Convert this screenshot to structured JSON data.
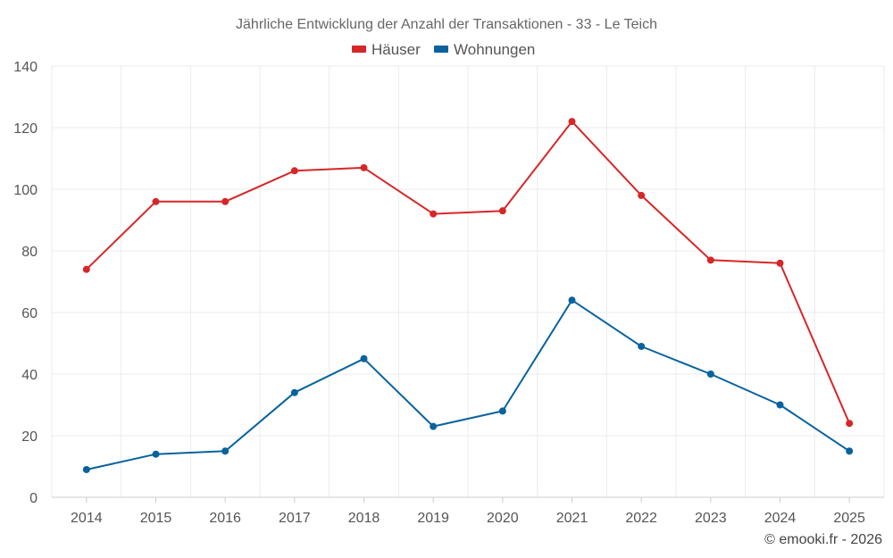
{
  "chart_data": {
    "type": "line",
    "title": "Jährliche Entwicklung der Anzahl der Transaktionen - 33 - Le Teich",
    "x": [
      "2014",
      "2015",
      "2016",
      "2017",
      "2018",
      "2019",
      "2020",
      "2021",
      "2022",
      "2023",
      "2024",
      "2025"
    ],
    "series": [
      {
        "name": "Häuser",
        "color": "#d62728",
        "values": [
          74,
          96,
          96,
          106,
          107,
          92,
          93,
          122,
          98,
          77,
          76,
          24
        ]
      },
      {
        "name": "Wohnungen",
        "color": "#07639d",
        "values": [
          9,
          14,
          15,
          34,
          45,
          23,
          28,
          64,
          49,
          40,
          30,
          15
        ]
      }
    ],
    "yticks": [
      "0",
      "20",
      "40",
      "60",
      "80",
      "100",
      "120",
      "140"
    ],
    "ylim": [
      0,
      140
    ],
    "grid": true,
    "legend_position": "top-center",
    "xlabel": "",
    "ylabel": ""
  },
  "credit": "© emooki.fr - 2026"
}
